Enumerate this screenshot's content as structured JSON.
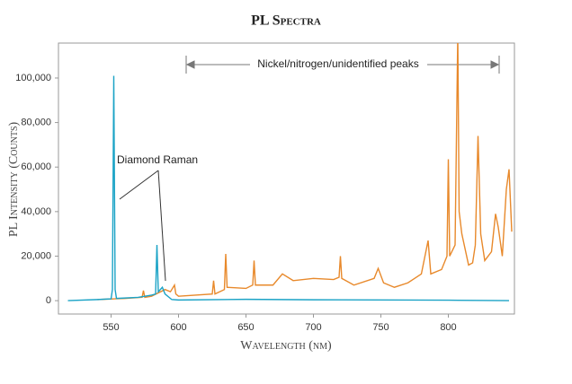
{
  "chart_data": {
    "type": "line",
    "title": "PL Spectra",
    "x_label": "Wavelength (nm)",
    "y_label": "PL Intensity (Counts)",
    "annotations": [
      "Diamond Raman",
      "Nickel/nitrogen/unidentified peaks"
    ],
    "xlim": [
      511,
      849
    ],
    "xticks": [
      550,
      600,
      650,
      700,
      750,
      800
    ],
    "ylim": [
      -6000,
      115700
    ],
    "yticks": [
      0,
      {
        "value": 20000,
        "label": "20,000"
      },
      {
        "value": 40000,
        "label": "40,000"
      },
      {
        "value": 60000,
        "label": "60,000"
      },
      {
        "value": 80000,
        "label": "80,000"
      },
      {
        "value": 100000,
        "label": "100,000"
      }
    ],
    "series": [
      {
        "color": "#e8892b",
        "x": [
          540,
          560,
          573,
          574,
          575,
          580,
          590,
          594,
          597,
          598,
          600,
          625,
          626,
          627,
          634,
          635,
          636,
          650,
          655,
          656,
          657,
          670,
          677,
          685,
          700,
          715,
          719,
          720,
          721,
          730,
          745,
          748,
          752,
          760,
          770,
          775,
          780,
          785,
          787,
          795,
          799,
          800,
          801,
          805,
          807,
          808,
          810,
          815,
          818,
          820,
          822,
          824,
          827,
          832,
          835,
          837,
          840,
          843,
          845,
          847
        ],
        "values": [
          500,
          1000,
          1500,
          4500,
          1500,
          2000,
          5000,
          4000,
          7000,
          3000,
          2000,
          3000,
          9000,
          3000,
          5000,
          21000,
          6000,
          5500,
          7000,
          18000,
          7000,
          7000,
          12000,
          9000,
          10000,
          9500,
          10500,
          20000,
          10000,
          7000,
          10000,
          14500,
          8000,
          6000,
          8000,
          10000,
          12000,
          27000,
          12000,
          14000,
          20000,
          63500,
          20000,
          25000,
          120000,
          40000,
          30000,
          16000,
          17000,
          25000,
          74000,
          30000,
          18000,
          22000,
          39000,
          33000,
          20000,
          50000,
          59000,
          31000
        ]
      },
      {
        "color": "#1ba3c6",
        "x": [
          518,
          540,
          550,
          551,
          552,
          553,
          554,
          570,
          580,
          583,
          584,
          585,
          588,
          590,
          595,
          600,
          650,
          700,
          800,
          845
        ],
        "values": [
          0,
          500,
          800,
          5000,
          101000,
          5000,
          1000,
          1500,
          2500,
          3000,
          25000,
          4000,
          6000,
          3000,
          500,
          300,
          600,
          400,
          200,
          0
        ]
      }
    ]
  }
}
